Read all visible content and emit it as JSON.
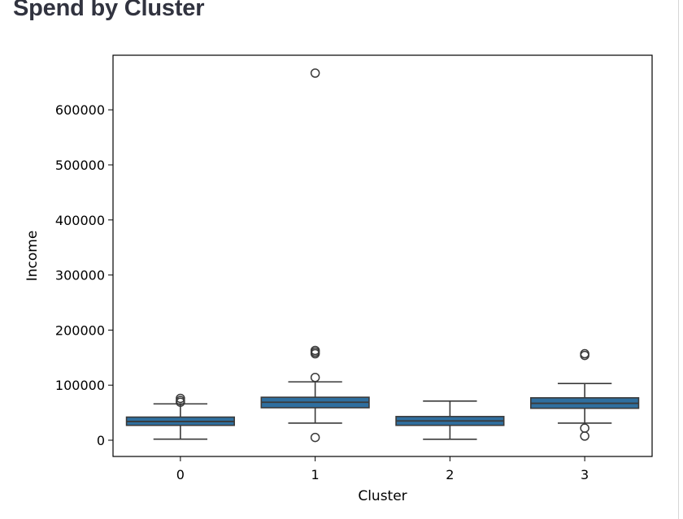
{
  "page": {
    "title": "Spend by Cluster"
  },
  "colors": {
    "box_fill": "#2f6f9f",
    "line": "#3a3a3a",
    "frame": "#000000",
    "page_title": "#31333f"
  },
  "chart_data": {
    "type": "box",
    "title": "",
    "xlabel": "Cluster",
    "ylabel": "Income",
    "categories": [
      "0",
      "1",
      "2",
      "3"
    ],
    "ylim": [
      -30000,
      700000
    ],
    "yticks": [
      0,
      100000,
      200000,
      300000,
      400000,
      500000,
      600000
    ],
    "ytick_labels": [
      "0",
      "100000",
      "200000",
      "300000",
      "400000",
      "500000",
      "600000"
    ],
    "grid": false,
    "legend": "none",
    "boxes": [
      {
        "category": "0",
        "whisker_low": 2000,
        "q1": 27000,
        "median": 34000,
        "q3": 42000,
        "whisker_high": 66000,
        "outliers": [
          69000,
          72000,
          76000
        ]
      },
      {
        "category": "1",
        "whisker_low": 31000,
        "q1": 59000,
        "median": 69000,
        "q3": 78000,
        "whisker_high": 106000,
        "outliers": [
          5000,
          114000,
          157000,
          160000,
          163000,
          666666
        ]
      },
      {
        "category": "2",
        "whisker_low": 1700,
        "q1": 27000,
        "median": 35000,
        "q3": 43000,
        "whisker_high": 71000,
        "outliers": []
      },
      {
        "category": "3",
        "whisker_low": 31000,
        "q1": 58000,
        "median": 67000,
        "q3": 77000,
        "whisker_high": 103000,
        "outliers": [
          7500,
          22000,
          154000,
          157000
        ]
      }
    ]
  }
}
